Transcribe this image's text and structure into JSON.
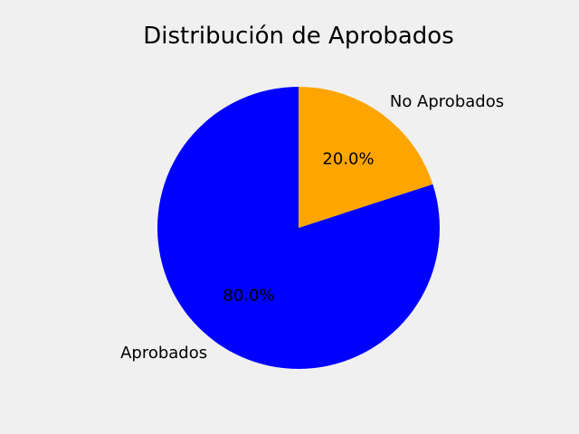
{
  "chart_data": {
    "type": "pie",
    "title": "Distribución de Aprobados",
    "categories": [
      "Aprobados",
      "No Aprobados"
    ],
    "values": [
      80,
      20
    ],
    "percent_labels": [
      "80.0%",
      "20.0%"
    ],
    "colors": [
      "#0000ff",
      "#ffa500"
    ],
    "start_angle_deg": 90,
    "direction": "counterclockwise",
    "legend": "none"
  },
  "theme": {
    "background": "#f0f0f0",
    "text_color": "#000000"
  }
}
